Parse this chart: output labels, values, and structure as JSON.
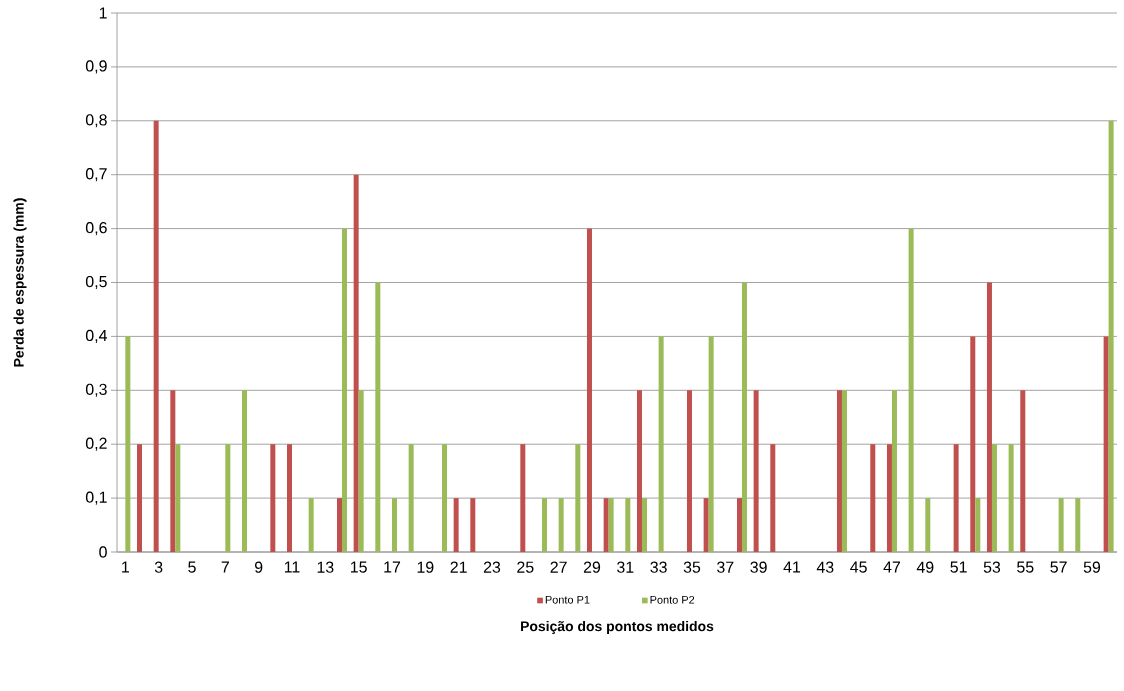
{
  "chart_data": {
    "type": "bar",
    "xlabel": "Posição dos pontos medidos",
    "ylabel": "Perda de espessura (mm)",
    "categories": [
      "1",
      null,
      "3",
      null,
      "5",
      null,
      "7",
      null,
      "9",
      null,
      "11",
      null,
      "13",
      null,
      "15",
      null,
      "17",
      null,
      "19",
      null,
      "21",
      null,
      "23",
      null,
      "25",
      null,
      "27",
      null,
      "29",
      null,
      "31",
      null,
      "33",
      null,
      "35",
      null,
      "37",
      null,
      "39",
      null,
      "41",
      null,
      "43",
      null,
      "45",
      null,
      "47",
      null,
      "49",
      null,
      "51",
      null,
      "53",
      null,
      "55",
      null,
      "57",
      null,
      "59",
      null
    ],
    "series": [
      {
        "name": "Ponto P1",
        "color": "#c0504d",
        "values": [
          0,
          0.2,
          0.8,
          0.3,
          0,
          0,
          0,
          0,
          0,
          0.2,
          0.2,
          0,
          0,
          0.1,
          0.7,
          0,
          0,
          0,
          0,
          0,
          0.1,
          0.1,
          0,
          0,
          0.2,
          0,
          0,
          0,
          0.6,
          0.1,
          0,
          0.3,
          0,
          0,
          0.3,
          0.1,
          0,
          0.1,
          0.3,
          0.2,
          0,
          0,
          0,
          0.3,
          0,
          0.2,
          0.2,
          0,
          0,
          0,
          0.2,
          0.4,
          0.5,
          0,
          0.3,
          0,
          0,
          0,
          0,
          0.4
        ]
      },
      {
        "name": "Ponto P2",
        "color": "#9bbb59",
        "values": [
          0.4,
          0,
          0,
          0.2,
          0,
          0,
          0.2,
          0.3,
          0,
          0,
          0,
          0.1,
          0,
          0.6,
          0.3,
          0.5,
          0.1,
          0.2,
          0,
          0.2,
          0,
          0,
          0,
          0,
          0,
          0.1,
          0.1,
          0.2,
          0,
          0.1,
          0.1,
          0.1,
          0.4,
          0,
          0,
          0.4,
          0,
          0.5,
          0,
          0,
          0,
          0,
          0,
          0.3,
          0,
          0,
          0.3,
          0.6,
          0.1,
          0,
          0,
          0.1,
          0.2,
          0.2,
          0,
          0,
          0.1,
          0.1,
          0,
          0.8
        ]
      }
    ],
    "ylim": [
      0,
      1
    ],
    "yticks": [
      0,
      {
        "value": 0.1,
        "label": "0,1"
      },
      {
        "value": 0.2,
        "label": "0,2"
      },
      {
        "value": 0.3,
        "label": "0,3"
      },
      {
        "value": 0.4,
        "label": "0,4"
      },
      {
        "value": 0.5,
        "label": "0,5"
      },
      {
        "value": 0.6,
        "label": "0,6"
      },
      {
        "value": 0.7,
        "label": "0,7"
      },
      {
        "value": 0.8,
        "label": "0,8"
      },
      {
        "value": 0.9,
        "label": "0,9"
      },
      1
    ],
    "grid": "y",
    "legend": "bottom"
  }
}
